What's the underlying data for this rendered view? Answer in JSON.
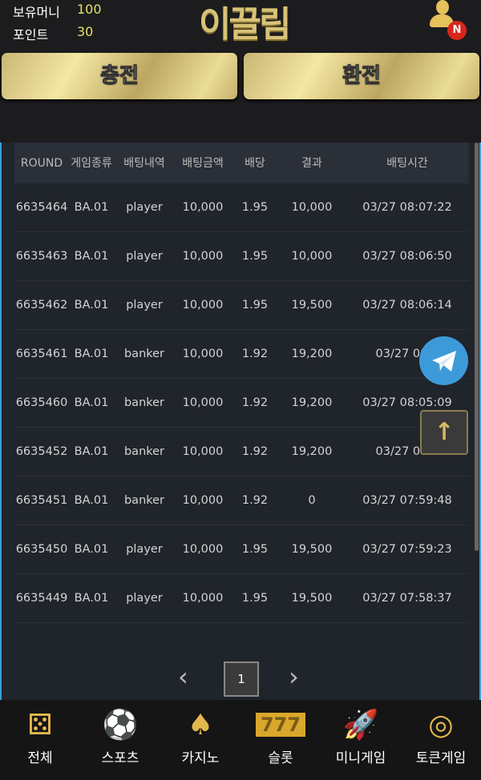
{
  "header": {
    "balance_label": "보유머니",
    "balance": "100",
    "points_label": "포인트",
    "points": "30",
    "logo": "이끌림",
    "notification_badge": "N"
  },
  "actions": {
    "charge": "충전",
    "exchange": "환전"
  },
  "table": {
    "columns": [
      "ROUND",
      "게임종류",
      "배팅내역",
      "배팅금액",
      "배당",
      "결과",
      "배팅시간"
    ],
    "rows": [
      [
        "6635464",
        "BA.01",
        "player",
        "10,000",
        "1.95",
        "10,000",
        "03/27 08:07:22"
      ],
      [
        "6635463",
        "BA.01",
        "player",
        "10,000",
        "1.95",
        "10,000",
        "03/27 08:06:50"
      ],
      [
        "6635462",
        "BA.01",
        "player",
        "10,000",
        "1.95",
        "19,500",
        "03/27 08:06:14"
      ],
      [
        "6635461",
        "BA.01",
        "banker",
        "10,000",
        "1.92",
        "19,200",
        "03/27 08:0"
      ],
      [
        "6635460",
        "BA.01",
        "banker",
        "10,000",
        "1.92",
        "19,200",
        "03/27 08:05:09"
      ],
      [
        "6635452",
        "BA.01",
        "banker",
        "10,000",
        "1.92",
        "19,200",
        "03/27 08:0"
      ],
      [
        "6635451",
        "BA.01",
        "banker",
        "10,000",
        "1.92",
        "0",
        "03/27 07:59:48"
      ],
      [
        "6635450",
        "BA.01",
        "player",
        "10,000",
        "1.95",
        "19,500",
        "03/27 07:59:23"
      ],
      [
        "6635449",
        "BA.01",
        "player",
        "10,000",
        "1.95",
        "19,500",
        "03/27 07:58:37"
      ]
    ]
  },
  "pagination": {
    "prev": "‹",
    "page": "1",
    "next": "›"
  },
  "float": {
    "scroll_top": "↑"
  },
  "nav": [
    {
      "label": "전체",
      "icon": "⚄"
    },
    {
      "label": "스포츠",
      "icon": "⚽"
    },
    {
      "label": "카지노",
      "icon": "♠"
    },
    {
      "label": "슬롯",
      "icon": "777"
    },
    {
      "label": "미니게임",
      "icon": "🚀"
    },
    {
      "label": "토큰게임",
      "icon": "◎"
    }
  ]
}
